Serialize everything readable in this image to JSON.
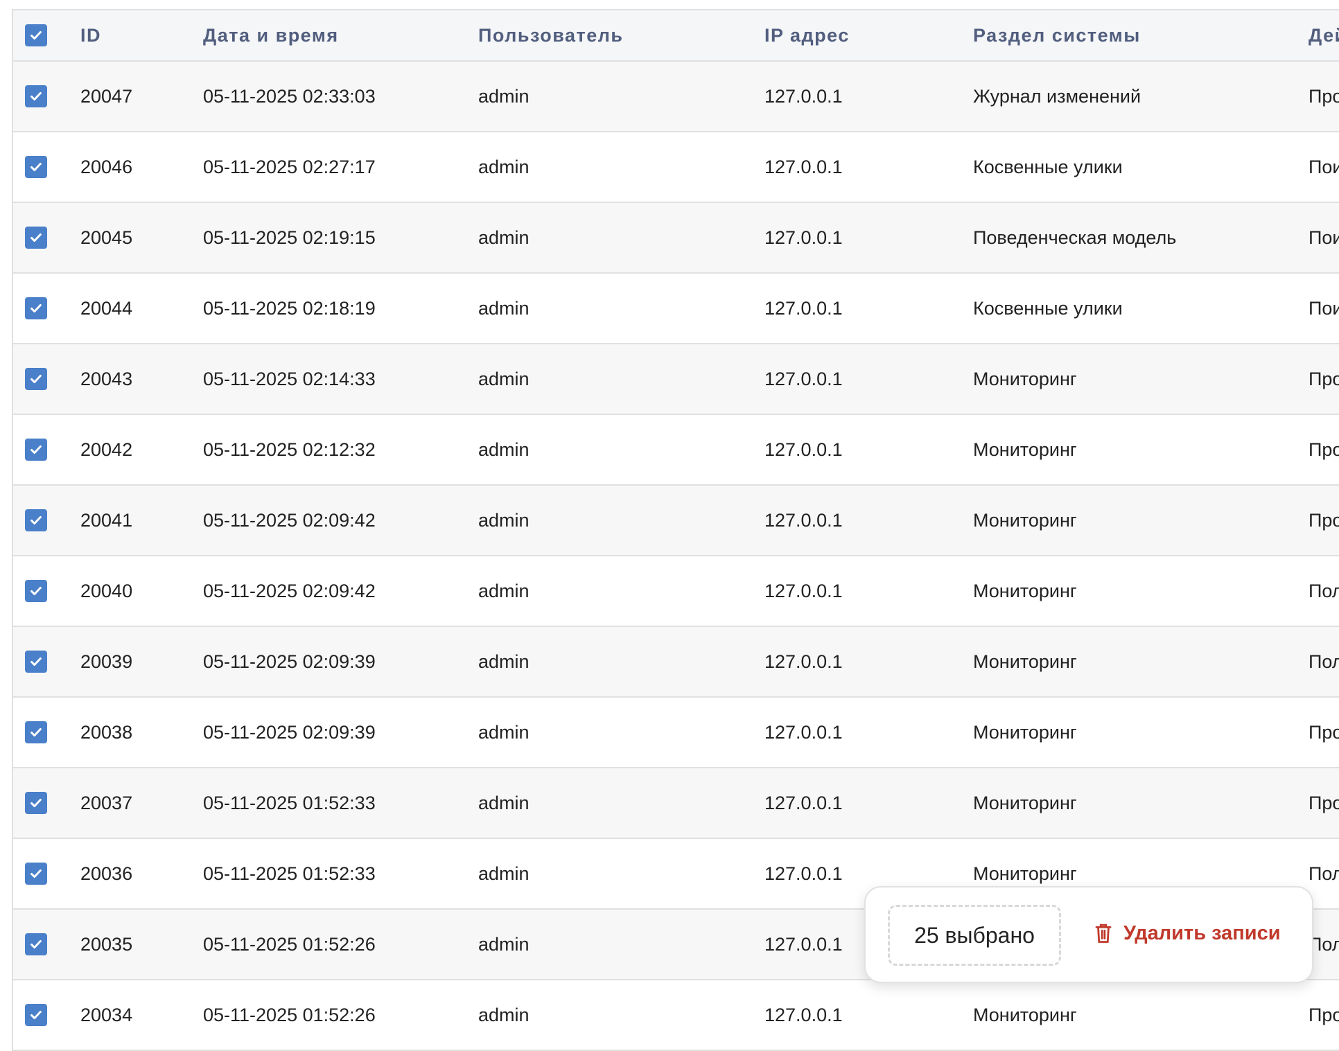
{
  "table": {
    "all_selected": true,
    "columns": [
      "ID",
      "Дата и время",
      "Пользователь",
      "IP адрес",
      "Раздел системы",
      "Действие"
    ],
    "rows": [
      {
        "id": "20047",
        "datetime": "05-11-2025 02:33:03",
        "user": "admin",
        "ip": "127.0.0.1",
        "section": "Журнал изменений",
        "action": "Про",
        "selected": true
      },
      {
        "id": "20046",
        "datetime": "05-11-2025 02:27:17",
        "user": "admin",
        "ip": "127.0.0.1",
        "section": "Косвенные улики",
        "action": "Пои",
        "selected": true
      },
      {
        "id": "20045",
        "datetime": "05-11-2025 02:19:15",
        "user": "admin",
        "ip": "127.0.0.1",
        "section": "Поведенческая модель",
        "action": "Пои",
        "selected": true
      },
      {
        "id": "20044",
        "datetime": "05-11-2025 02:18:19",
        "user": "admin",
        "ip": "127.0.0.1",
        "section": "Косвенные улики",
        "action": "Пои",
        "selected": true
      },
      {
        "id": "20043",
        "datetime": "05-11-2025 02:14:33",
        "user": "admin",
        "ip": "127.0.0.1",
        "section": "Мониторинг",
        "action": "Про",
        "selected": true
      },
      {
        "id": "20042",
        "datetime": "05-11-2025 02:12:32",
        "user": "admin",
        "ip": "127.0.0.1",
        "section": "Мониторинг",
        "action": "Про",
        "selected": true
      },
      {
        "id": "20041",
        "datetime": "05-11-2025 02:09:42",
        "user": "admin",
        "ip": "127.0.0.1",
        "section": "Мониторинг",
        "action": "Про",
        "selected": true
      },
      {
        "id": "20040",
        "datetime": "05-11-2025 02:09:42",
        "user": "admin",
        "ip": "127.0.0.1",
        "section": "Мониторинг",
        "action": "Пол",
        "selected": true
      },
      {
        "id": "20039",
        "datetime": "05-11-2025 02:09:39",
        "user": "admin",
        "ip": "127.0.0.1",
        "section": "Мониторинг",
        "action": "Пол",
        "selected": true
      },
      {
        "id": "20038",
        "datetime": "05-11-2025 02:09:39",
        "user": "admin",
        "ip": "127.0.0.1",
        "section": "Мониторинг",
        "action": "Про",
        "selected": true
      },
      {
        "id": "20037",
        "datetime": "05-11-2025 01:52:33",
        "user": "admin",
        "ip": "127.0.0.1",
        "section": "Мониторинг",
        "action": "Про",
        "selected": true
      },
      {
        "id": "20036",
        "datetime": "05-11-2025 01:52:33",
        "user": "admin",
        "ip": "127.0.0.1",
        "section": "Мониторинг",
        "action": "Пол",
        "selected": true
      },
      {
        "id": "20035",
        "datetime": "05-11-2025 01:52:26",
        "user": "admin",
        "ip": "127.0.0.1",
        "section": "",
        "action": "Пол",
        "selected": true
      },
      {
        "id": "20034",
        "datetime": "05-11-2025 01:52:26",
        "user": "admin",
        "ip": "127.0.0.1",
        "section": "Мониторинг",
        "action": "Про",
        "selected": true
      }
    ]
  },
  "selection_bar": {
    "count_label": "25 выбрано",
    "delete_label": "Удалить записи",
    "delete_icon": "trash-icon"
  },
  "colors": {
    "accent": "#4a7fc9",
    "danger": "#c0392b",
    "header_text": "#525e7e"
  }
}
